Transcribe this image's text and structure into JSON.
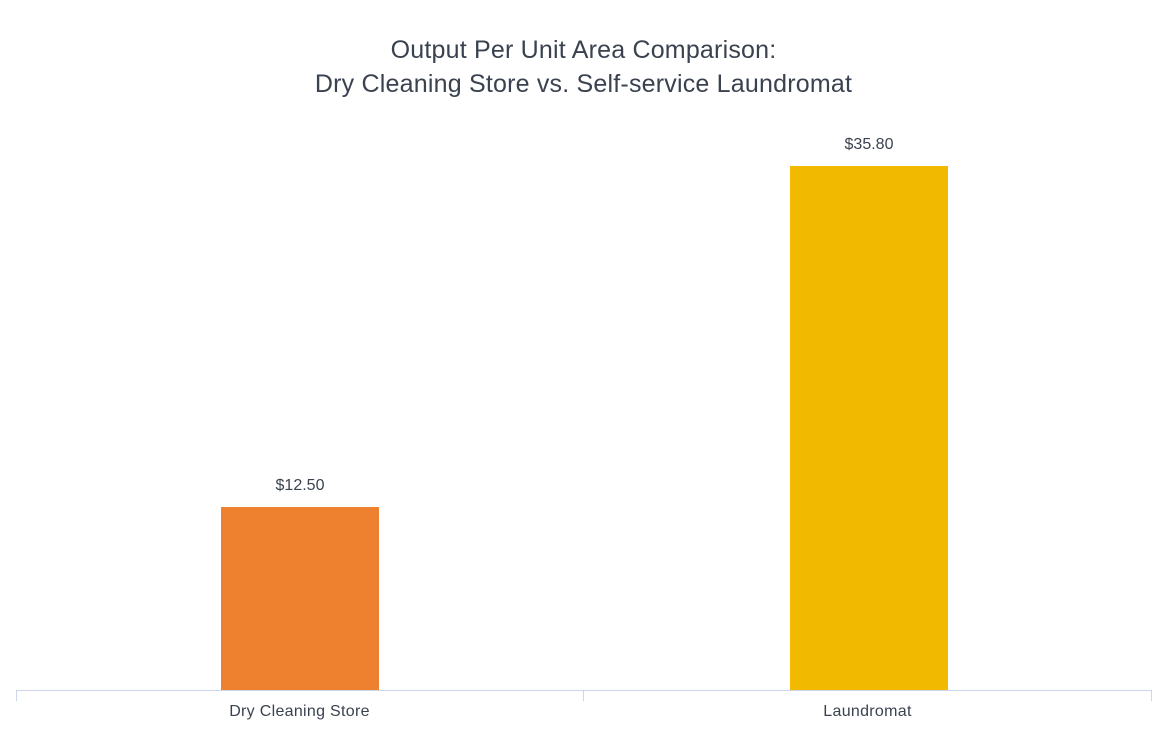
{
  "chart_data": {
    "type": "bar",
    "title": "Output Per Unit Area Comparison: Dry Cleaning Store vs. Self-service Laundromat",
    "title_lines": [
      "Output Per Unit Area Comparison:",
      "Dry Cleaning Store vs. Self-service Laundromat"
    ],
    "categories": [
      "Dry Cleaning Store",
      "Laundromat"
    ],
    "values": [
      12.5,
      35.8
    ],
    "data_labels": [
      "$12.50",
      "$35.80"
    ],
    "series_colors": [
      "#EE8130",
      "#F1BA00"
    ],
    "xlabel": "",
    "ylabel": "",
    "ylim": [
      0,
      40
    ],
    "grid": false,
    "legend": "none",
    "y_axis_visible": false,
    "axis_line_color": "#CCD6EB",
    "text_color": "#3A4250",
    "background_color": "#FFFFFF"
  }
}
